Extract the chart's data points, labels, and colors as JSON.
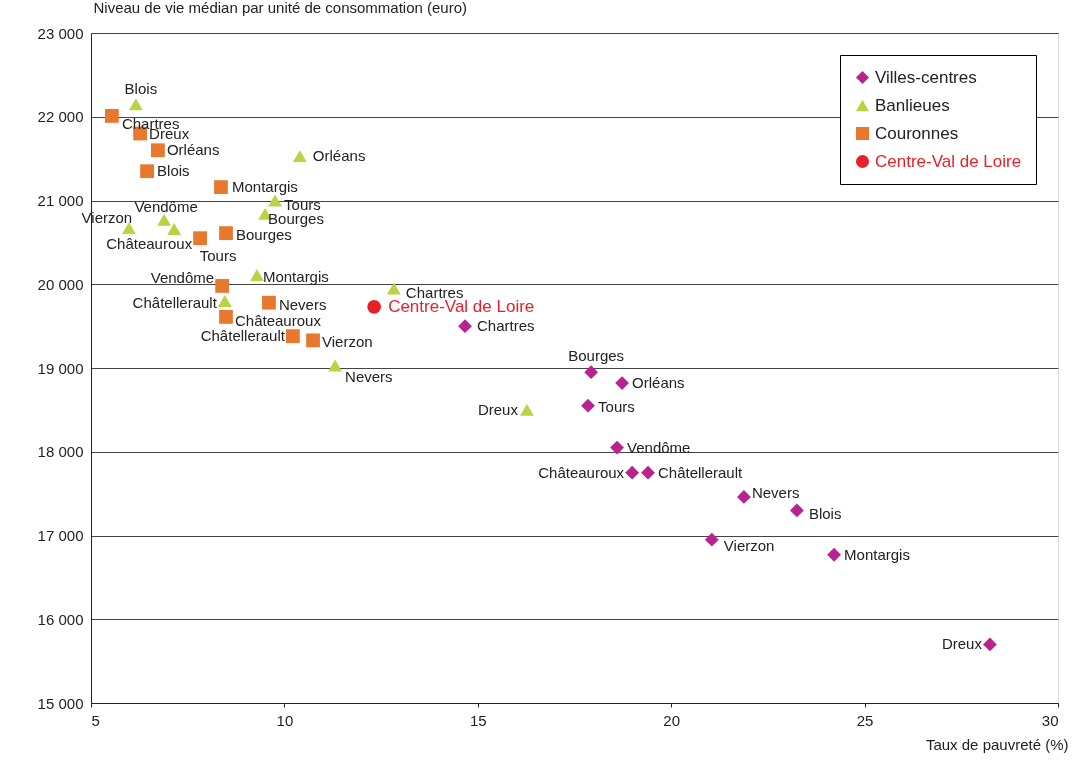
{
  "chart_data": {
    "type": "scatter",
    "xlabel": "Taux de pauvreté (%)",
    "ylabel": "Niveau de vie médian par unité de consommation (euro)",
    "xlim": [
      5,
      30
    ],
    "xticks": [
      5,
      10,
      15,
      20,
      25,
      30
    ],
    "ylim": [
      15000,
      23000
    ],
    "yticks": [
      {
        "value": 15000,
        "label": "15 000"
      },
      {
        "value": 16000,
        "label": "16 000"
      },
      {
        "value": 17000,
        "label": "17 000"
      },
      {
        "value": 18000,
        "label": "18 000"
      },
      {
        "value": 19000,
        "label": "19 000"
      },
      {
        "value": 20000,
        "label": "20 000"
      },
      {
        "value": 21000,
        "label": "21 000"
      },
      {
        "value": 22000,
        "label": "22 000"
      },
      {
        "value": 23000,
        "label": "23 000"
      }
    ],
    "grid": "y",
    "legend": "top right",
    "series": [
      {
        "name": "Villes-centres",
        "color": "#b8238f",
        "marker": "diamond",
        "x": [
          14.67,
          17.93,
          18.73,
          17.85,
          18.6,
          18.99,
          19.4,
          21.88,
          23.25,
          21.05,
          24.21,
          28.24
        ],
        "values": [
          19500,
          18950,
          18820,
          18550,
          18050,
          17750,
          17750,
          17460,
          17300,
          16950,
          16770,
          15700
        ]
      },
      {
        "name": "Banlieues",
        "color": "#bcd243",
        "marker": "triangle",
        "x": [
          6.16,
          10.4,
          9.76,
          9.5,
          6.89,
          5.98,
          7.15,
          9.29,
          12.83,
          8.46,
          11.31,
          16.27
        ],
        "values": [
          22150,
          21530,
          21000,
          20840,
          20770,
          20670,
          20660,
          20110,
          19950,
          19800,
          19030,
          18500
        ]
      },
      {
        "name": "Couronnes",
        "color": "#e8782e",
        "marker": "square",
        "x": [
          5.54,
          6.27,
          6.73,
          6.45,
          8.36,
          7.82,
          8.49,
          8.39,
          9.6,
          8.49,
          10.22,
          10.74
        ],
        "values": [
          22010,
          21800,
          21600,
          21350,
          21160,
          20550,
          20610,
          19980,
          19780,
          19610,
          19380,
          19330
        ]
      },
      {
        "name": "Centre-Val de Loire",
        "color": "#e8202a",
        "marker": "circle",
        "x": [
          12.32
        ],
        "values": [
          19730
        ]
      }
    ],
    "annotations": [
      {
        "text": "Chartres",
        "x": 14.67,
        "y": 19500
      },
      {
        "text": "Bourges",
        "x": 17.93,
        "y": 18950
      },
      {
        "text": "Orléans",
        "x": 18.73,
        "y": 18820
      },
      {
        "text": "Tours",
        "x": 17.85,
        "y": 18550
      },
      {
        "text": "Vendôme",
        "x": 18.6,
        "y": 18050
      },
      {
        "text": "Châteauroux",
        "x": 18.99,
        "y": 17750
      },
      {
        "text": "Châtellerault",
        "x": 19.4,
        "y": 17750
      },
      {
        "text": "Nevers",
        "x": 21.88,
        "y": 17460
      },
      {
        "text": "Blois",
        "x": 23.25,
        "y": 17300
      },
      {
        "text": "Vierzon",
        "x": 21.05,
        "y": 16950
      },
      {
        "text": "Montargis",
        "x": 24.21,
        "y": 16770
      },
      {
        "text": "Dreux",
        "x": 28.24,
        "y": 15700
      },
      {
        "text": "Blois",
        "x": 6.16,
        "y": 22150
      },
      {
        "text": "Orléans",
        "x": 10.4,
        "y": 21530
      },
      {
        "text": "Tours",
        "x": 9.76,
        "y": 21000
      },
      {
        "text": "Bourges",
        "x": 9.5,
        "y": 20840
      },
      {
        "text": "Vendôme",
        "x": 6.89,
        "y": 20770
      },
      {
        "text": "Vierzon",
        "x": 5.98,
        "y": 20670
      },
      {
        "text": "Châteauroux",
        "x": 7.15,
        "y": 20660
      },
      {
        "text": "Montargis",
        "x": 9.29,
        "y": 20110
      },
      {
        "text": "Chartres",
        "x": 12.83,
        "y": 19950
      },
      {
        "text": "Châtellerault",
        "x": 8.46,
        "y": 19800
      },
      {
        "text": "Nevers",
        "x": 11.31,
        "y": 19030
      },
      {
        "text": "Dreux",
        "x": 16.27,
        "y": 18500
      },
      {
        "text": "Chartres",
        "x": 5.54,
        "y": 22010
      },
      {
        "text": "Dreux",
        "x": 6.27,
        "y": 21800
      },
      {
        "text": "Orléans",
        "x": 6.73,
        "y": 21600
      },
      {
        "text": "Blois",
        "x": 6.45,
        "y": 21350
      },
      {
        "text": "Montargis",
        "x": 8.36,
        "y": 21160
      },
      {
        "text": "Tours",
        "x": 7.82,
        "y": 20550
      },
      {
        "text": "Bourges",
        "x": 8.49,
        "y": 20610
      },
      {
        "text": "Vendôme",
        "x": 8.39,
        "y": 19980
      },
      {
        "text": "Nevers",
        "x": 9.6,
        "y": 19780
      },
      {
        "text": "Châteauroux",
        "x": 8.49,
        "y": 19610
      },
      {
        "text": "Châtellerault",
        "x": 10.22,
        "y": 19380
      },
      {
        "text": "Vierzon",
        "x": 10.74,
        "y": 19330
      }
    ]
  }
}
